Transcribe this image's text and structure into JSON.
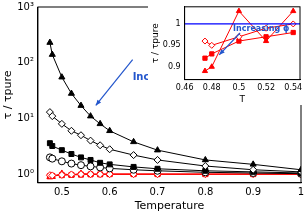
{
  "chart_data": [
    {
      "type": "line",
      "x_label": "Temperature",
      "y_label": "τ / τpure",
      "log": "y",
      "grid": false,
      "xlim": [
        0.45,
        1.0
      ],
      "xticks": [
        0.5,
        0.6,
        0.7,
        0.8,
        0.9,
        1
      ],
      "ylim": [
        0.7,
        1000
      ],
      "yticks": [
        {
          "value": 1,
          "label": "10⁰"
        },
        {
          "value": 10,
          "label": "10¹"
        },
        {
          "value": 100,
          "label": "10²"
        },
        {
          "value": 1000,
          "label": "10³"
        }
      ],
      "x": [
        0.475,
        0.48,
        0.5,
        0.52,
        0.54,
        0.56,
        0.58,
        0.6,
        0.65,
        0.7,
        0.8,
        0.9,
        1.0
      ],
      "series": [
        {
          "color": "#000000",
          "marker": "triangle",
          "values": [
            230,
            140,
            55,
            28,
            17,
            11,
            8,
            6,
            3.8,
            2.7,
            1.8,
            1.5,
            1.2
          ]
        },
        {
          "color": "#000000",
          "marker": "diamond_open",
          "values": [
            13,
            11,
            8,
            6,
            5,
            4,
            3.3,
            2.8,
            2.2,
            1.8,
            1.4,
            1.2,
            1.1
          ]
        },
        {
          "color": "#000000",
          "marker": "square",
          "values": [
            3.6,
            3.2,
            2.7,
            2.3,
            2.0,
            1.8,
            1.6,
            1.5,
            1.35,
            1.25,
            1.15,
            1.1,
            1.05
          ]
        },
        {
          "color": "#000000",
          "marker": "circle_open",
          "values": [
            2.0,
            1.9,
            1.7,
            1.55,
            1.45,
            1.38,
            1.32,
            1.27,
            1.2,
            1.15,
            1.08,
            1.05,
            1.02
          ]
        },
        {
          "color": "#ff0000",
          "marker": "diamond_open",
          "values": [
            0.96,
            0.95,
            0.97,
            0.99,
            1.0,
            1.0,
            1.0,
            1.0,
            1.0,
            1.0,
            1.0,
            1.0,
            1.0
          ]
        },
        {
          "color": "#ff0000",
          "marker": "square",
          "values": [
            0.92,
            0.93,
            0.96,
            0.97,
            0.98,
            0.99,
            0.99,
            1.0,
            1.0,
            1.0,
            1.0,
            1.0,
            1.0
          ]
        },
        {
          "color": "#ff0000",
          "marker": "triangle",
          "values": [
            0.89,
            0.9,
            1.03,
            0.96,
            1.03,
            1.0,
            1.0,
            1.0,
            1.0,
            1.0,
            1.0,
            1.0,
            1.0
          ]
        }
      ],
      "annotations": [
        "Increasing ϕ"
      ]
    },
    {
      "type": "line",
      "x_label": "T",
      "y_label": "τ / τpure",
      "grid": false,
      "xlim": [
        0.46,
        0.545
      ],
      "xticks": [
        0.46,
        0.48,
        0.5,
        0.52,
        0.54
      ],
      "ylim": [
        0.87,
        1.04
      ],
      "yticks": [
        0.9,
        0.95,
        1
      ],
      "reference_line": 1,
      "x": [
        0.475,
        0.48,
        0.5,
        0.52,
        0.54
      ],
      "series": [
        {
          "color": "#ff0000",
          "marker": "diamond_open",
          "values": [
            0.96,
            0.95,
            0.97,
            0.99,
            1.0
          ]
        },
        {
          "color": "#ff0000",
          "marker": "square",
          "values": [
            0.92,
            0.93,
            0.96,
            0.97,
            0.98
          ]
        },
        {
          "color": "#ff0000",
          "marker": "triangle",
          "values": [
            0.89,
            0.9,
            1.03,
            0.96,
            1.03
          ]
        }
      ],
      "annotations": [
        "Increasing ϕ"
      ]
    }
  ]
}
